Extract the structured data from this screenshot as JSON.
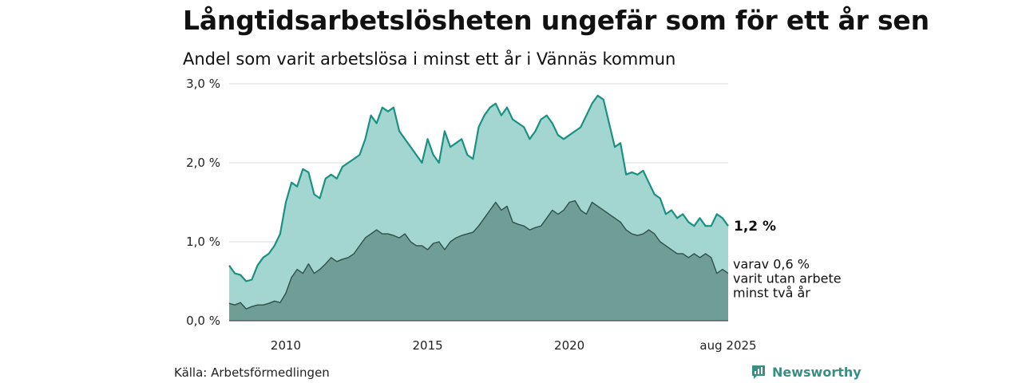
{
  "title": "Långtidsarbetslösheten ungefär som för ett år sen",
  "subtitle": "Andel som varit arbetslösa i minst ett år i Vännäs kommun",
  "source": "Källa: Arbetsförmedlingen",
  "brand": "Newsworthy",
  "colors": {
    "series1_line": "#1a9182",
    "series1_fill": "#a3d6d0",
    "series2_line": "#2f4f4a",
    "series2_fill": "#6f9e96",
    "grid": "#d9d9d9",
    "brand": "#3b8f82"
  },
  "chart_data": {
    "type": "area",
    "xlim": [
      2008.0,
      2025.6
    ],
    "ylim": [
      0,
      3.0
    ],
    "yticks": [
      {
        "value": 0,
        "label": "0,0 %"
      },
      {
        "value": 1,
        "label": "1,0 %"
      },
      {
        "value": 2,
        "label": "2,0 %"
      },
      {
        "value": 3,
        "label": "3,0 %"
      }
    ],
    "xticks": [
      {
        "value": 2010,
        "label": "2010"
      },
      {
        "value": 2015,
        "label": "2015"
      },
      {
        "value": 2020,
        "label": "2020"
      },
      {
        "value": 2025.6,
        "label": "aug 2025"
      }
    ],
    "grid": true,
    "end_labels": {
      "series1": "1,2 %",
      "series2_lines": [
        "varav 0,6 %",
        "varit utan arbete",
        "minst två år"
      ]
    },
    "series": [
      {
        "x": [
          2008.0,
          2008.2,
          2008.4,
          2008.6,
          2008.8,
          2009.0,
          2009.2,
          2009.4,
          2009.6,
          2009.8,
          2010.0,
          2010.2,
          2010.4,
          2010.6,
          2010.8,
          2011.0,
          2011.2,
          2011.4,
          2011.6,
          2011.8,
          2012.0,
          2012.2,
          2012.4,
          2012.6,
          2012.8,
          2013.0,
          2013.2,
          2013.4,
          2013.6,
          2013.8,
          2014.0,
          2014.2,
          2014.4,
          2014.6,
          2014.8,
          2015.0,
          2015.2,
          2015.4,
          2015.6,
          2015.8,
          2016.0,
          2016.2,
          2016.4,
          2016.6,
          2016.8,
          2017.0,
          2017.2,
          2017.4,
          2017.6,
          2017.8,
          2018.0,
          2018.2,
          2018.4,
          2018.6,
          2018.8,
          2019.0,
          2019.2,
          2019.4,
          2019.6,
          2019.8,
          2020.0,
          2020.2,
          2020.4,
          2020.6,
          2020.8,
          2021.0,
          2021.2,
          2021.4,
          2021.6,
          2021.8,
          2022.0,
          2022.2,
          2022.4,
          2022.6,
          2022.8,
          2023.0,
          2023.2,
          2023.4,
          2023.6,
          2023.8,
          2024.0,
          2024.2,
          2024.4,
          2024.6,
          2024.8,
          2025.0,
          2025.2,
          2025.4,
          2025.6
        ],
        "values": [
          0.7,
          0.6,
          0.58,
          0.5,
          0.52,
          0.7,
          0.8,
          0.85,
          0.95,
          1.1,
          1.5,
          1.75,
          1.7,
          1.92,
          1.88,
          1.6,
          1.55,
          1.8,
          1.85,
          1.8,
          1.95,
          2.0,
          2.05,
          2.1,
          2.3,
          2.6,
          2.5,
          2.7,
          2.65,
          2.7,
          2.4,
          2.3,
          2.2,
          2.1,
          2.0,
          2.3,
          2.1,
          2.0,
          2.4,
          2.2,
          2.25,
          2.3,
          2.1,
          2.05,
          2.45,
          2.6,
          2.7,
          2.75,
          2.6,
          2.7,
          2.55,
          2.5,
          2.45,
          2.3,
          2.4,
          2.55,
          2.6,
          2.5,
          2.35,
          2.3,
          2.35,
          2.4,
          2.45,
          2.6,
          2.75,
          2.85,
          2.8,
          2.5,
          2.2,
          2.25,
          1.85,
          1.88,
          1.85,
          1.9,
          1.75,
          1.6,
          1.55,
          1.35,
          1.4,
          1.3,
          1.35,
          1.25,
          1.2,
          1.3,
          1.2,
          1.2,
          1.35,
          1.3,
          1.2
        ]
      },
      {
        "x": [
          2008.0,
          2008.2,
          2008.4,
          2008.6,
          2008.8,
          2009.0,
          2009.2,
          2009.4,
          2009.6,
          2009.8,
          2010.0,
          2010.2,
          2010.4,
          2010.6,
          2010.8,
          2011.0,
          2011.2,
          2011.4,
          2011.6,
          2011.8,
          2012.0,
          2012.2,
          2012.4,
          2012.6,
          2012.8,
          2013.0,
          2013.2,
          2013.4,
          2013.6,
          2013.8,
          2014.0,
          2014.2,
          2014.4,
          2014.6,
          2014.8,
          2015.0,
          2015.2,
          2015.4,
          2015.6,
          2015.8,
          2016.0,
          2016.2,
          2016.4,
          2016.6,
          2016.8,
          2017.0,
          2017.2,
          2017.4,
          2017.6,
          2017.8,
          2018.0,
          2018.2,
          2018.4,
          2018.6,
          2018.8,
          2019.0,
          2019.2,
          2019.4,
          2019.6,
          2019.8,
          2020.0,
          2020.2,
          2020.4,
          2020.6,
          2020.8,
          2021.0,
          2021.2,
          2021.4,
          2021.6,
          2021.8,
          2022.0,
          2022.2,
          2022.4,
          2022.6,
          2022.8,
          2023.0,
          2023.2,
          2023.4,
          2023.6,
          2023.8,
          2024.0,
          2024.2,
          2024.4,
          2024.6,
          2024.8,
          2025.0,
          2025.2,
          2025.4,
          2025.6
        ],
        "values": [
          0.22,
          0.2,
          0.23,
          0.15,
          0.18,
          0.2,
          0.2,
          0.22,
          0.25,
          0.23,
          0.35,
          0.55,
          0.65,
          0.6,
          0.72,
          0.6,
          0.65,
          0.72,
          0.8,
          0.75,
          0.78,
          0.8,
          0.85,
          0.95,
          1.05,
          1.1,
          1.15,
          1.1,
          1.1,
          1.08,
          1.05,
          1.1,
          1.0,
          0.95,
          0.95,
          0.9,
          0.98,
          1.0,
          0.9,
          1.0,
          1.05,
          1.08,
          1.1,
          1.12,
          1.2,
          1.3,
          1.4,
          1.5,
          1.4,
          1.45,
          1.25,
          1.22,
          1.2,
          1.15,
          1.18,
          1.2,
          1.3,
          1.4,
          1.35,
          1.4,
          1.5,
          1.52,
          1.4,
          1.35,
          1.5,
          1.45,
          1.4,
          1.35,
          1.3,
          1.25,
          1.15,
          1.1,
          1.08,
          1.1,
          1.15,
          1.1,
          1.0,
          0.95,
          0.9,
          0.85,
          0.85,
          0.8,
          0.85,
          0.8,
          0.85,
          0.8,
          0.6,
          0.65,
          0.6
        ]
      }
    ]
  }
}
